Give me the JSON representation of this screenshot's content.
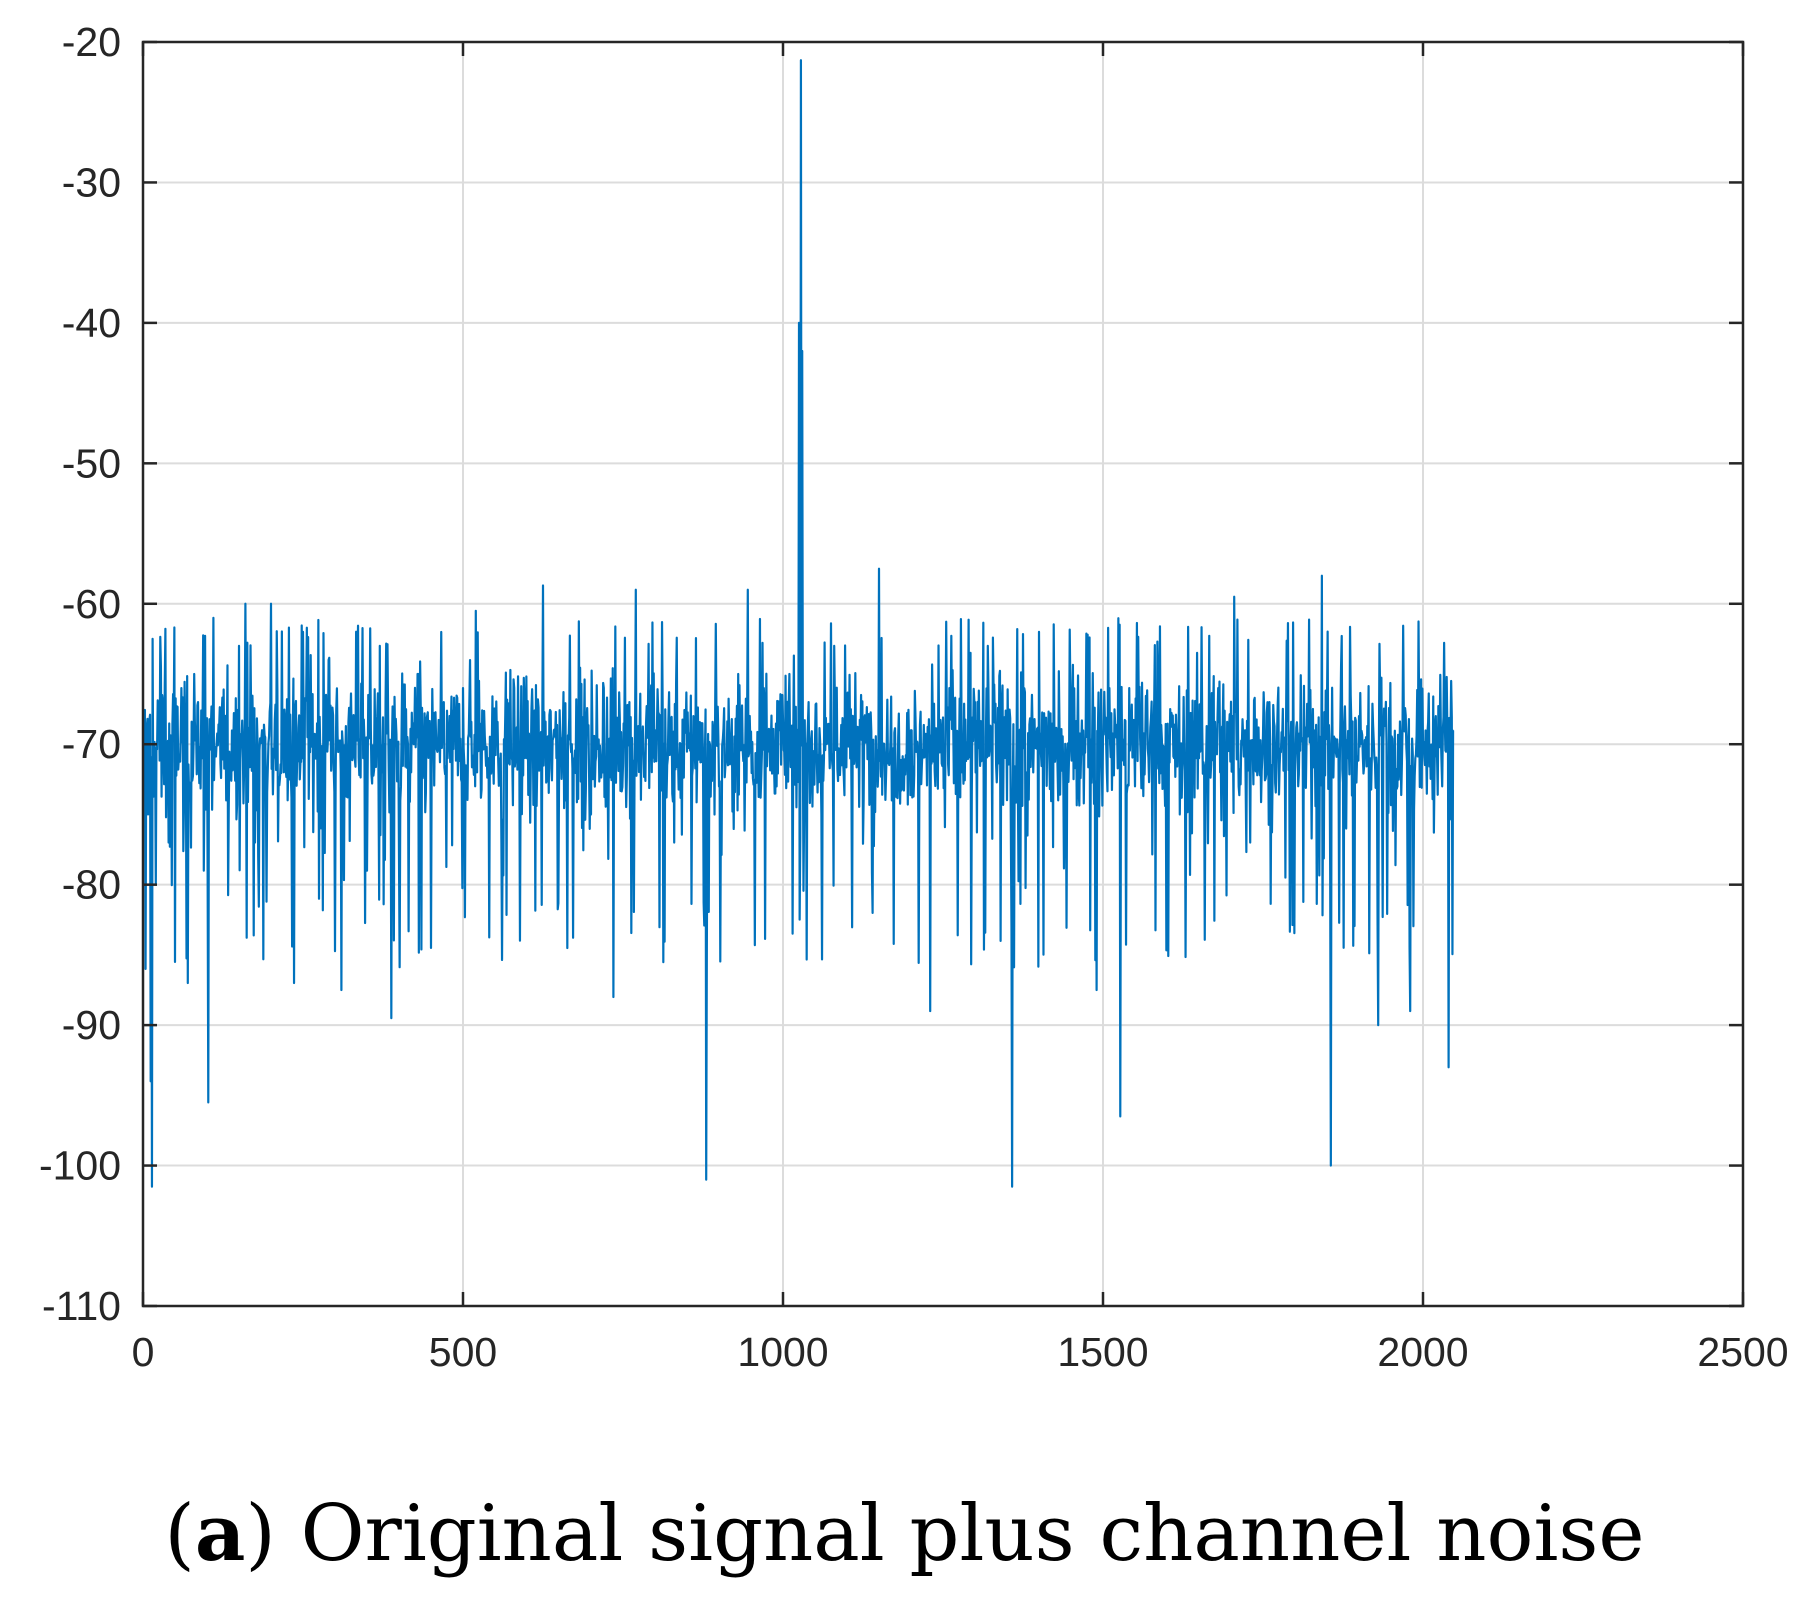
{
  "caption": {
    "open_paren": "(",
    "letter": "a",
    "rest": ") Original signal plus channel noise"
  },
  "colors": {
    "series": "#0072BD",
    "axis": "#262626",
    "grid": "#dcdcdc",
    "background": "#ffffff"
  },
  "chart_data": {
    "type": "line",
    "title": "",
    "xlabel": "",
    "ylabel": "",
    "xlim": [
      0,
      2500
    ],
    "ylim": [
      -110,
      -20
    ],
    "x_ticks": [
      0,
      500,
      1000,
      1500,
      2000,
      2500
    ],
    "y_ticks": [
      -20,
      -30,
      -40,
      -50,
      -60,
      -70,
      -80,
      -90,
      -100,
      -110
    ],
    "x_tick_labels": [
      "0",
      "500",
      "1000",
      "1500",
      "2000",
      "2500"
    ],
    "y_tick_labels": [
      "-20",
      "-30",
      "-40",
      "-50",
      "-60",
      "-70",
      "-80",
      "-90",
      "-100",
      "-110"
    ],
    "grid": true,
    "box": true,
    "series": [
      {
        "x_range": [
          1,
          2048
        ],
        "baseline": -70,
        "noise_band": [
          -78,
          -63
        ],
        "values": [
          [
            1,
            -70
          ],
          [
            4,
            -86
          ],
          [
            8,
            -75
          ],
          [
            12,
            -94
          ],
          [
            14,
            -101.5
          ],
          [
            17,
            -72
          ],
          [
            20,
            -80
          ],
          [
            24,
            -69
          ],
          [
            30,
            -66.5
          ],
          [
            40,
            -77
          ],
          [
            50,
            -85.5
          ],
          [
            60,
            -66
          ],
          [
            70,
            -87
          ],
          [
            80,
            -65
          ],
          [
            95,
            -79
          ],
          [
            102,
            -95.5
          ],
          [
            110,
            -61
          ],
          [
            130,
            -74
          ],
          [
            150,
            -63
          ],
          [
            160,
            -60
          ],
          [
            175,
            -77
          ],
          [
            200,
            -60
          ],
          [
            220,
            -72
          ],
          [
            236,
            -87
          ],
          [
            250,
            -62
          ],
          [
            275,
            -81
          ],
          [
            290,
            -64
          ],
          [
            310,
            -87.5
          ],
          [
            330,
            -70
          ],
          [
            350,
            -79
          ],
          [
            370,
            -63
          ],
          [
            388,
            -89.5
          ],
          [
            400,
            -78
          ],
          [
            430,
            -65
          ],
          [
            450,
            -84.5
          ],
          [
            470,
            -67
          ],
          [
            500,
            -66
          ],
          [
            520,
            -60.5
          ],
          [
            540,
            -71
          ],
          [
            560,
            -77
          ],
          [
            580,
            -66
          ],
          [
            600,
            -71
          ],
          [
            625,
            -58.7
          ],
          [
            650,
            -73
          ],
          [
            670,
            -70
          ],
          [
            700,
            -75
          ],
          [
            720,
            -66
          ],
          [
            735,
            -88
          ],
          [
            760,
            -67
          ],
          [
            770,
            -59
          ],
          [
            800,
            -69
          ],
          [
            830,
            -77
          ],
          [
            860,
            -68
          ],
          [
            880,
            -101
          ],
          [
            900,
            -73
          ],
          [
            930,
            -65
          ],
          [
            945,
            -59
          ],
          [
            970,
            -66
          ],
          [
            995,
            -69
          ],
          [
            1010,
            -65
          ],
          [
            1025,
            -40
          ],
          [
            1028,
            -21.3
          ],
          [
            1030,
            -42
          ],
          [
            1040,
            -67
          ],
          [
            1060,
            -75
          ],
          [
            1080,
            -63
          ],
          [
            1100,
            -67
          ],
          [
            1130,
            -69
          ],
          [
            1150,
            -57.5
          ],
          [
            1170,
            -74
          ],
          [
            1200,
            -69
          ],
          [
            1230,
            -89
          ],
          [
            1260,
            -66
          ],
          [
            1280,
            -72
          ],
          [
            1300,
            -67
          ],
          [
            1320,
            -63
          ],
          [
            1340,
            -84
          ],
          [
            1358,
            -101.5
          ],
          [
            1380,
            -72
          ],
          [
            1400,
            -62
          ],
          [
            1430,
            -74
          ],
          [
            1460,
            -69
          ],
          [
            1490,
            -87.5
          ],
          [
            1510,
            -66
          ],
          [
            1527,
            -96.5
          ],
          [
            1550,
            -73
          ],
          [
            1580,
            -67
          ],
          [
            1600,
            -70
          ],
          [
            1620,
            -75
          ],
          [
            1650,
            -71
          ],
          [
            1680,
            -66
          ],
          [
            1705,
            -59.5
          ],
          [
            1730,
            -77
          ],
          [
            1760,
            -67
          ],
          [
            1800,
            -72
          ],
          [
            1842,
            -58
          ],
          [
            1856,
            -100
          ],
          [
            1880,
            -76
          ],
          [
            1900,
            -68
          ],
          [
            1930,
            -90
          ],
          [
            1960,
            -73
          ],
          [
            1980,
            -89
          ],
          [
            2000,
            -70
          ],
          [
            2020,
            -68
          ],
          [
            2030,
            -73
          ],
          [
            2040,
            -93
          ],
          [
            2044,
            -65.5
          ],
          [
            2048,
            -69
          ]
        ]
      }
    ]
  }
}
